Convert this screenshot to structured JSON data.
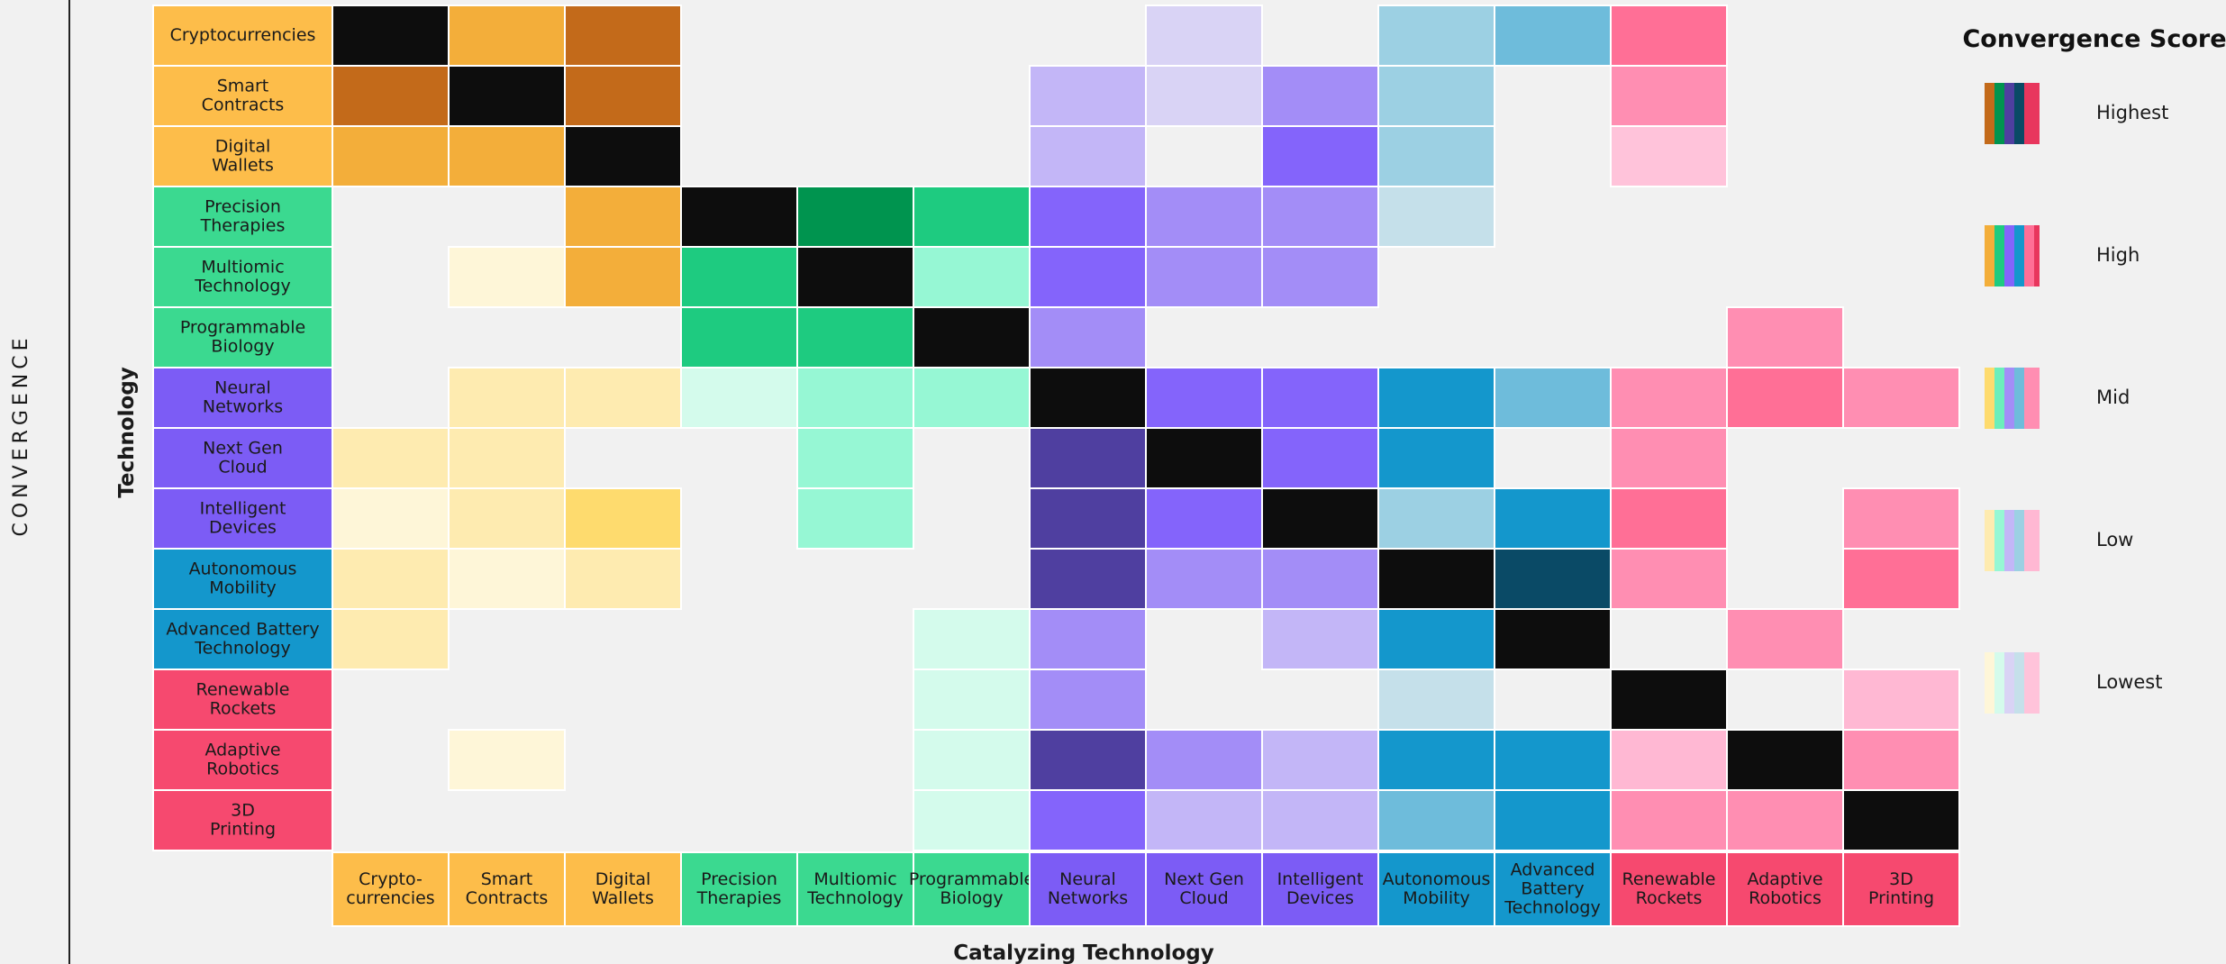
{
  "chart_data": {
    "type": "heatmap",
    "xlabel": "Catalyzing Technology",
    "ylabel": "Technology",
    "side_label": "CONVERGENCE",
    "legend": {
      "title": "Convergence Score",
      "levels": [
        "Highest",
        "High",
        "Mid",
        "Low",
        "Lowest"
      ]
    },
    "rows": [
      {
        "name": "Cryptocurrencies",
        "group": "crypto"
      },
      {
        "name": "Smart\nContracts",
        "group": "crypto"
      },
      {
        "name": "Digital\nWallets",
        "group": "crypto"
      },
      {
        "name": "Precision\nTherapies",
        "group": "bio"
      },
      {
        "name": "Multiomic\nTechnology",
        "group": "bio"
      },
      {
        "name": "Programmable\nBiology",
        "group": "bio"
      },
      {
        "name": "Neural\nNetworks",
        "group": "ai"
      },
      {
        "name": "Next Gen\nCloud",
        "group": "ai"
      },
      {
        "name": "Intelligent\nDevices",
        "group": "ai"
      },
      {
        "name": "Autonomous\nMobility",
        "group": "energy"
      },
      {
        "name": "Advanced Battery\nTechnology",
        "group": "energy"
      },
      {
        "name": "Renewable\nRockets",
        "group": "robot"
      },
      {
        "name": "Adaptive\nRobotics",
        "group": "robot"
      },
      {
        "name": "3D\nPrinting",
        "group": "robot"
      }
    ],
    "columns": [
      {
        "name": "Crypto-\ncurrencies",
        "group": "crypto"
      },
      {
        "name": "Smart\nContracts",
        "group": "crypto"
      },
      {
        "name": "Digital\nWallets",
        "group": "crypto"
      },
      {
        "name": "Precision\nTherapies",
        "group": "bio"
      },
      {
        "name": "Multiomic\nTechnology",
        "group": "bio"
      },
      {
        "name": "Programmable\nBiology",
        "group": "bio"
      },
      {
        "name": "Neural\nNetworks",
        "group": "ai"
      },
      {
        "name": "Next Gen\nCloud",
        "group": "ai"
      },
      {
        "name": "Intelligent\nDevices",
        "group": "ai"
      },
      {
        "name": "Autonomous\nMobility",
        "group": "energy"
      },
      {
        "name": "Advanced\nBattery\nTechnology",
        "group": "energy"
      },
      {
        "name": "Renewable\nRockets",
        "group": "robot"
      },
      {
        "name": "Adaptive\nRobotics",
        "group": "robot"
      },
      {
        "name": "3D\nPrinting",
        "group": "robot"
      }
    ],
    "score_scale": "0 = no convergence, 1 = Lowest, 2 = Low, 3 = Mid, 4 = High, 5 = Highest, 9 = self (diagonal)",
    "matrix": [
      [
        9,
        4,
        5,
        0,
        0,
        0,
        0,
        1,
        0,
        2,
        3,
        4,
        0,
        0
      ],
      [
        5,
        9,
        5,
        0,
        0,
        0,
        2,
        1,
        3,
        2,
        0,
        3,
        0,
        0
      ],
      [
        4,
        4,
        9,
        0,
        0,
        0,
        2,
        0,
        4,
        2,
        0,
        1,
        0,
        0
      ],
      [
        0,
        0,
        4,
        9,
        5,
        4,
        4,
        3,
        3,
        1,
        0,
        0,
        0,
        0
      ],
      [
        0,
        1,
        4,
        4,
        9,
        2,
        4,
        3,
        3,
        0,
        0,
        0,
        0,
        0
      ],
      [
        0,
        0,
        0,
        4,
        4,
        9,
        3,
        0,
        0,
        0,
        0,
        0,
        3,
        0
      ],
      [
        0,
        2,
        2,
        1,
        2,
        2,
        9,
        4,
        4,
        4,
        3,
        3,
        4,
        3
      ],
      [
        2,
        2,
        0,
        0,
        2,
        0,
        5,
        9,
        4,
        4,
        0,
        3,
        0,
        0
      ],
      [
        1,
        2,
        3,
        0,
        2,
        0,
        5,
        4,
        9,
        2,
        4,
        4,
        0,
        3
      ],
      [
        2,
        1,
        2,
        0,
        0,
        0,
        5,
        3,
        3,
        9,
        5,
        3,
        0,
        4
      ],
      [
        2,
        0,
        0,
        0,
        0,
        1,
        3,
        0,
        2,
        4,
        9,
        0,
        3,
        0
      ],
      [
        0,
        0,
        0,
        0,
        0,
        1,
        3,
        0,
        0,
        1,
        0,
        9,
        0,
        2
      ],
      [
        0,
        1,
        0,
        0,
        0,
        1,
        5,
        3,
        2,
        4,
        4,
        2,
        9,
        3
      ],
      [
        0,
        0,
        0,
        0,
        0,
        1,
        4,
        2,
        2,
        3,
        4,
        3,
        3,
        9
      ]
    ]
  },
  "colors": {
    "groups": {
      "crypto": "#fdbd4a",
      "bio": "#3bd990",
      "ai": "#7c5cf5",
      "energy": "#1497cc",
      "robot": "#f6496f"
    },
    "self": "#0d0d0d",
    "cell_border": "#ffffff",
    "scale": {
      "crypto": [
        "#fef6d8",
        "#feebb0",
        "#fedb6e",
        "#f3ae3a",
        "#c36a1a"
      ],
      "bio": [
        "#d4fbec",
        "#96f7d4",
        "#6ceebb",
        "#1ecb80",
        "#00944f"
      ],
      "ai": [
        "#d9d3f5",
        "#c3b6f7",
        "#a38df7",
        "#8464fb",
        "#4f3fa0"
      ],
      "energy": [
        "#c5e0ea",
        "#9cd0e3",
        "#6ebcdb",
        "#1497cc",
        "#0a4a66"
      ],
      "robot": [
        "#ffc3da",
        "#ffb8d3",
        "#ff8eb2",
        "#ff6f96",
        "#e8365d"
      ]
    }
  }
}
